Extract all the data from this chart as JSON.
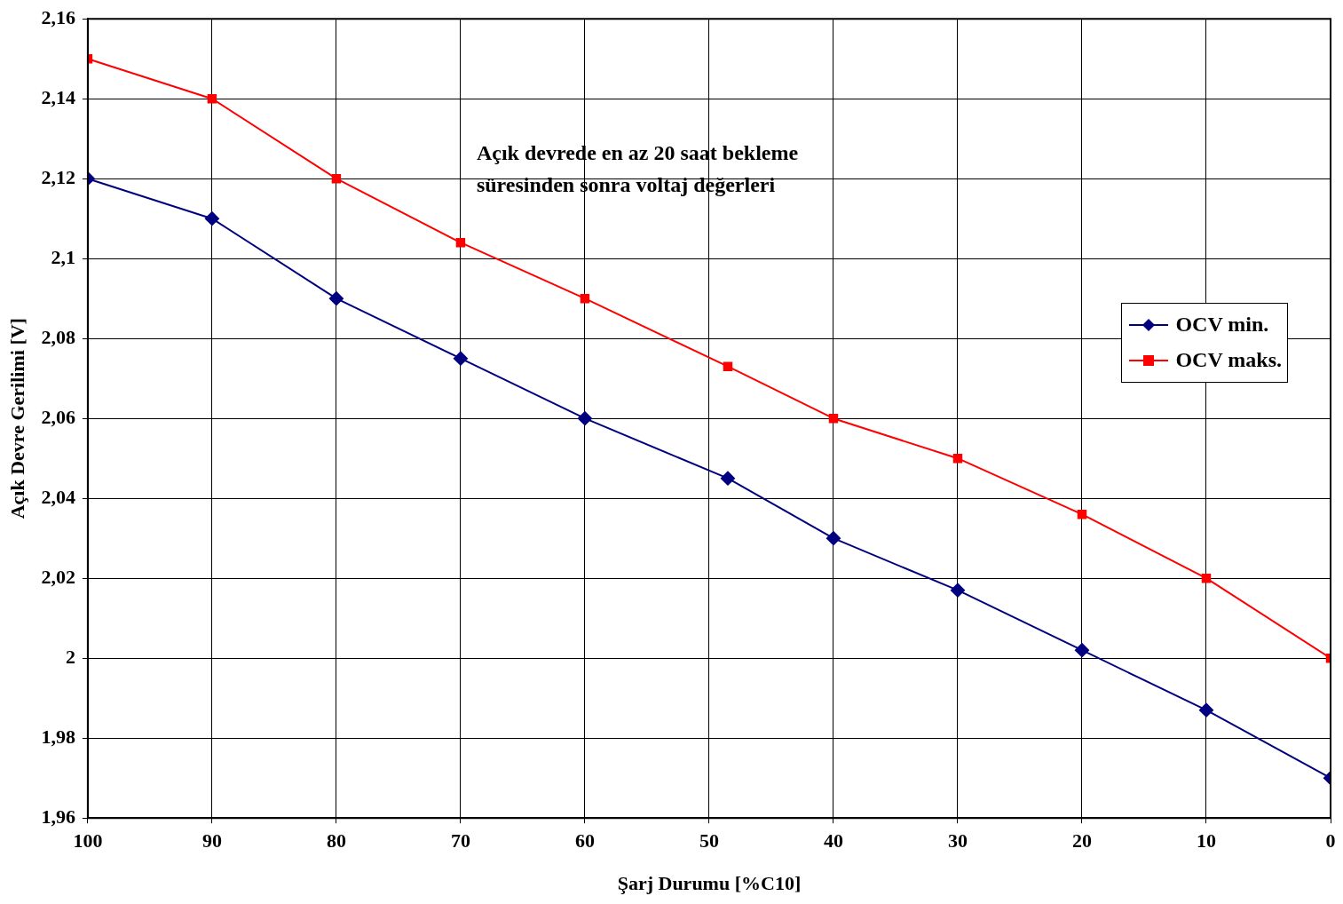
{
  "chart_data": {
    "type": "line",
    "xlabel": "Şarj Durumu [%C10]",
    "ylabel": "Açık Devre Gerilimi [V]",
    "annotations": [
      "Açık devrede en az 20 saat bekleme süresinden sonra voltaj değerleri"
    ],
    "x": [
      100,
      90,
      80,
      70,
      60,
      48.5,
      40,
      30,
      20,
      10,
      0
    ],
    "series": [
      {
        "name": "OCV min.",
        "color": "#000080",
        "marker": "diamond",
        "values": [
          2.12,
          2.11,
          2.09,
          2.075,
          2.06,
          2.045,
          2.03,
          2.017,
          2.002,
          1.987,
          1.97
        ]
      },
      {
        "name": "OCV maks.",
        "color": "#ff0000",
        "marker": "square",
        "values": [
          2.15,
          2.14,
          2.12,
          2.104,
          2.09,
          2.073,
          2.06,
          2.05,
          2.036,
          2.02,
          2.0
        ]
      }
    ],
    "xlim": [
      100,
      0
    ],
    "xticks": [
      100,
      90,
      80,
      70,
      60,
      50,
      40,
      30,
      20,
      10,
      0
    ],
    "ylim": [
      1.96,
      2.16
    ],
    "yticks": [
      {
        "value": 1.96,
        "label": "1,96"
      },
      {
        "value": 1.98,
        "label": "1,98"
      },
      {
        "value": 2,
        "label": "2"
      },
      {
        "value": 2.02,
        "label": "2,02"
      },
      {
        "value": 2.04,
        "label": "2,04"
      },
      {
        "value": 2.06,
        "label": "2,06"
      },
      {
        "value": 2.08,
        "label": "2,08"
      },
      {
        "value": 2.1,
        "label": "2,1"
      },
      {
        "value": 2.12,
        "label": "2,12"
      },
      {
        "value": 2.14,
        "label": "2,14"
      },
      {
        "value": 2.16,
        "label": "2,16"
      }
    ],
    "grid": true,
    "legend": "right",
    "line_style": "solid"
  }
}
